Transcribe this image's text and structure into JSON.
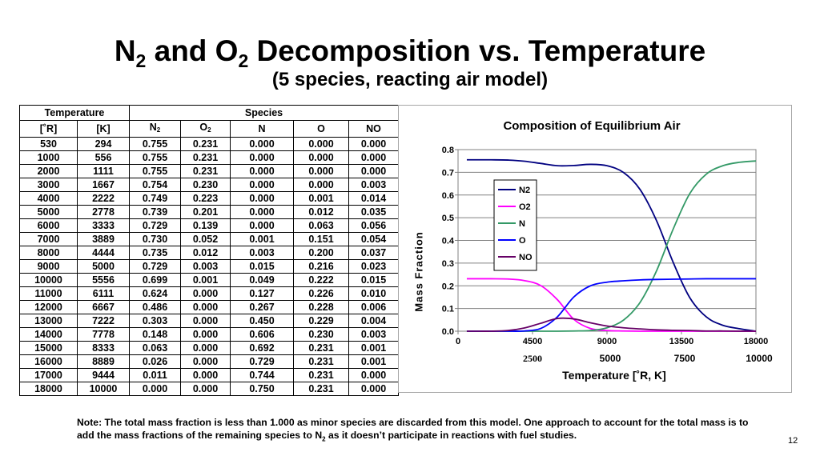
{
  "title": {
    "part1": "N",
    "sub1": "2",
    "part2": " and O",
    "sub2": "2",
    "part3": " Decomposition vs. Temperature"
  },
  "subtitle": "(5 species, reacting air model)",
  "table": {
    "group_temperature": "Temperature",
    "group_species": "Species",
    "col_R": "[˚R]",
    "col_K": "[K]",
    "col_N2_base": "N",
    "col_N2_sub": "2",
    "col_O2_base": "O",
    "col_O2_sub": "2",
    "col_N": "N",
    "col_O": "O",
    "col_NO": "NO",
    "rows": [
      [
        "530",
        "294",
        "0.755",
        "0.231",
        "0.000",
        "0.000",
        "0.000"
      ],
      [
        "1000",
        "556",
        "0.755",
        "0.231",
        "0.000",
        "0.000",
        "0.000"
      ],
      [
        "2000",
        "1111",
        "0.755",
        "0.231",
        "0.000",
        "0.000",
        "0.000"
      ],
      [
        "3000",
        "1667",
        "0.754",
        "0.230",
        "0.000",
        "0.000",
        "0.003"
      ],
      [
        "4000",
        "2222",
        "0.749",
        "0.223",
        "0.000",
        "0.001",
        "0.014"
      ],
      [
        "5000",
        "2778",
        "0.739",
        "0.201",
        "0.000",
        "0.012",
        "0.035"
      ],
      [
        "6000",
        "3333",
        "0.729",
        "0.139",
        "0.000",
        "0.063",
        "0.056"
      ],
      [
        "7000",
        "3889",
        "0.730",
        "0.052",
        "0.001",
        "0.151",
        "0.054"
      ],
      [
        "8000",
        "4444",
        "0.735",
        "0.012",
        "0.003",
        "0.200",
        "0.037"
      ],
      [
        "9000",
        "5000",
        "0.729",
        "0.003",
        "0.015",
        "0.216",
        "0.023"
      ],
      [
        "10000",
        "5556",
        "0.699",
        "0.001",
        "0.049",
        "0.222",
        "0.015"
      ],
      [
        "11000",
        "6111",
        "0.624",
        "0.000",
        "0.127",
        "0.226",
        "0.010"
      ],
      [
        "12000",
        "6667",
        "0.486",
        "0.000",
        "0.267",
        "0.228",
        "0.006"
      ],
      [
        "13000",
        "7222",
        "0.303",
        "0.000",
        "0.450",
        "0.229",
        "0.004"
      ],
      [
        "14000",
        "7778",
        "0.148",
        "0.000",
        "0.606",
        "0.230",
        "0.003"
      ],
      [
        "15000",
        "8333",
        "0.063",
        "0.000",
        "0.692",
        "0.231",
        "0.001"
      ],
      [
        "16000",
        "8889",
        "0.026",
        "0.000",
        "0.729",
        "0.231",
        "0.001"
      ],
      [
        "17000",
        "9444",
        "0.011",
        "0.000",
        "0.744",
        "0.231",
        "0.000"
      ],
      [
        "18000",
        "10000",
        "0.000",
        "0.000",
        "0.750",
        "0.231",
        "0.000"
      ]
    ]
  },
  "chart_data": {
    "type": "line",
    "title": "Composition of Equilibrium Air",
    "xlabel": "Temperature [˚R, K]",
    "ylabel": "Mass Fraction",
    "xlim": [
      0,
      18000
    ],
    "ylim": [
      0,
      0.8
    ],
    "x_ticks": [
      "0",
      "4500",
      "9000",
      "13500",
      "18000"
    ],
    "x_ticks_K": [
      "2500",
      "5000",
      "7500",
      "10000"
    ],
    "y_ticks": [
      "0.0",
      "0.1",
      "0.2",
      "0.3",
      "0.4",
      "0.5",
      "0.6",
      "0.7",
      "0.8"
    ],
    "legend_position": "upper-left",
    "grid": "horizontal",
    "x": [
      530,
      1000,
      2000,
      3000,
      4000,
      5000,
      6000,
      7000,
      8000,
      9000,
      10000,
      11000,
      12000,
      13000,
      14000,
      15000,
      16000,
      17000,
      18000
    ],
    "series": [
      {
        "name": "N2",
        "color": "#000080",
        "values": [
          0.755,
          0.755,
          0.755,
          0.754,
          0.749,
          0.739,
          0.729,
          0.73,
          0.735,
          0.729,
          0.699,
          0.624,
          0.486,
          0.303,
          0.148,
          0.063,
          0.026,
          0.011,
          0.0
        ]
      },
      {
        "name": "O2",
        "color": "#ff00ff",
        "values": [
          0.231,
          0.231,
          0.231,
          0.23,
          0.223,
          0.201,
          0.139,
          0.052,
          0.012,
          0.003,
          0.001,
          0.0,
          0.0,
          0.0,
          0.0,
          0.0,
          0.0,
          0.0,
          0.0
        ]
      },
      {
        "name": "N",
        "color": "#339966",
        "values": [
          0.0,
          0.0,
          0.0,
          0.0,
          0.0,
          0.0,
          0.0,
          0.001,
          0.003,
          0.015,
          0.049,
          0.127,
          0.267,
          0.45,
          0.606,
          0.692,
          0.729,
          0.744,
          0.75
        ]
      },
      {
        "name": "O",
        "color": "#0000ff",
        "values": [
          0.0,
          0.0,
          0.0,
          0.0,
          0.001,
          0.012,
          0.063,
          0.151,
          0.2,
          0.216,
          0.222,
          0.226,
          0.228,
          0.229,
          0.23,
          0.231,
          0.231,
          0.231,
          0.231
        ]
      },
      {
        "name": "NO",
        "color": "#660066",
        "values": [
          0.0,
          0.0,
          0.0,
          0.003,
          0.014,
          0.035,
          0.056,
          0.054,
          0.037,
          0.023,
          0.015,
          0.01,
          0.006,
          0.004,
          0.003,
          0.001,
          0.001,
          0.0,
          0.0
        ]
      }
    ]
  },
  "note": {
    "text1": "Note: The total mass fraction is less than 1.000 as minor species are discarded from this model.  One approach to account for the total mass is to add the mass fractions of the remaining species to N",
    "sub": "2",
    "text2": " as it doesn’t participate in reactions with fuel studies."
  },
  "page_number": "12"
}
